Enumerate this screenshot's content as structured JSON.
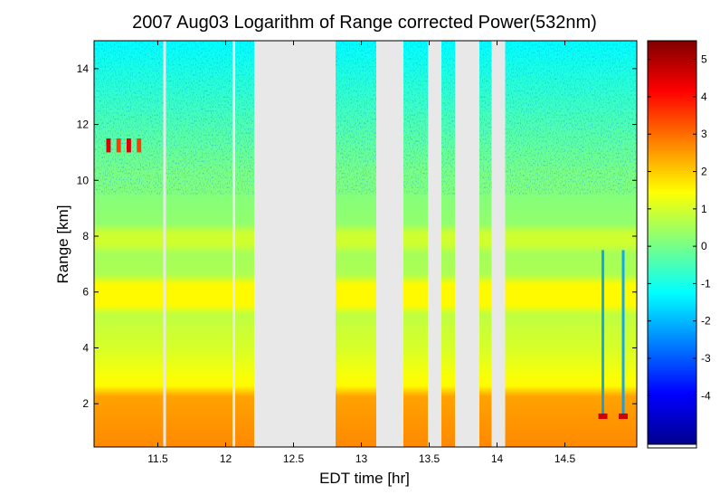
{
  "chart_data": {
    "type": "heatmap",
    "title": "2007 Aug03  Logarithm of Range corrected Power(532nm)",
    "xlabel": "EDT time [hr]",
    "ylabel": "Range [km]",
    "xlim": [
      11.03,
      15.03
    ],
    "ylim": [
      0.45,
      15.0
    ],
    "x_ticks": [
      11.5,
      12,
      12.5,
      13,
      13.5,
      14,
      14.5
    ],
    "x_tick_labels": [
      "11.5",
      "12",
      "12.5",
      "13",
      "13.5",
      "14",
      "14.5"
    ],
    "y_ticks": [
      2,
      4,
      6,
      8,
      10,
      12,
      14
    ],
    "y_tick_labels": [
      "2",
      "4",
      "6",
      "8",
      "10",
      "12",
      "14"
    ],
    "colorbar": {
      "range": [
        -5.3,
        5.5
      ],
      "ticks": [
        -4,
        -3,
        -2,
        -1,
        0,
        1,
        2,
        3,
        4,
        5
      ],
      "tick_labels": [
        "-4",
        "-3",
        "-2",
        "-1",
        "0",
        "1",
        "2",
        "3",
        "4",
        "5"
      ],
      "colormap": "jet"
    },
    "data_gaps_hr": [
      [
        11.54,
        11.56
      ],
      [
        12.05,
        12.07
      ],
      [
        12.21,
        12.81
      ],
      [
        13.11,
        13.31
      ],
      [
        13.49,
        13.59
      ],
      [
        13.69,
        13.87
      ],
      [
        13.96,
        14.06
      ]
    ],
    "gap_color": "#e8e8e8",
    "layers": [
      {
        "name": "boundary layer",
        "range_km": [
          0.45,
          2.35
        ],
        "log_power": 2.7
      },
      {
        "name": "transition",
        "range_km": [
          2.35,
          4.2
        ],
        "log_power": 1.4
      },
      {
        "name": "aerosol band",
        "range_km": [
          5.5,
          6.3
        ],
        "log_power": 1.6
      },
      {
        "name": "aerosol band",
        "range_km": [
          7.5,
          8.3
        ],
        "log_power": 1.0
      },
      {
        "name": "cloud",
        "range_km": [
          11.0,
          11.5
        ],
        "time_hr": [
          11.1,
          11.4
        ],
        "log_power": 4.5
      }
    ],
    "grid": false
  }
}
